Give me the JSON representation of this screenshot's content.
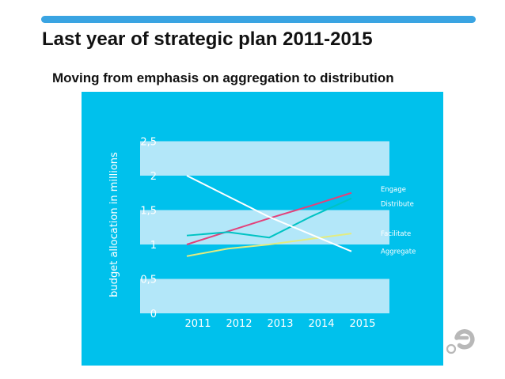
{
  "header": {
    "title": "Last year of strategic plan 2011-2015",
    "subtitle": "Moving from emphasis on aggregation to distribution"
  },
  "colors": {
    "accent_bar": "#3aa4e2",
    "panel_bg": "#00c1ec",
    "band": "#b3e7f9",
    "axis_text": "#ffffff",
    "logo": "#b8b8b8"
  },
  "chart_data": {
    "type": "line",
    "ylabel": "budget allocation in millions",
    "xlabel": "",
    "x": [
      "2011",
      "2012",
      "2013",
      "2014",
      "2015"
    ],
    "ylim": [
      0,
      2.5
    ],
    "yticks": [
      {
        "value": 0,
        "label": "0"
      },
      {
        "value": 0.5,
        "label": "0,5"
      },
      {
        "value": 1,
        "label": "1"
      },
      {
        "value": 1.5,
        "label": "1,5"
      },
      {
        "value": 2,
        "label": "2"
      },
      {
        "value": 2.5,
        "label": "2,5"
      }
    ],
    "bands": [
      [
        0,
        0.5
      ],
      [
        1,
        1.5
      ],
      [
        2,
        2.5
      ]
    ],
    "series": [
      {
        "name": "Engage",
        "values": [
          1.0,
          1.19,
          1.38,
          1.56,
          1.75
        ],
        "color": "#e3417a"
      },
      {
        "name": "Distribute",
        "values": [
          1.13,
          1.18,
          1.1,
          1.4,
          1.67
        ],
        "color": "#00c3c3"
      },
      {
        "name": "Facilitate",
        "values": [
          0.83,
          0.94,
          1.0,
          1.08,
          1.16
        ],
        "color": "#e3ec80"
      },
      {
        "name": "Aggregate",
        "values": [
          2.0,
          1.7,
          1.4,
          1.15,
          0.9
        ],
        "color": "#ffffff"
      }
    ]
  }
}
